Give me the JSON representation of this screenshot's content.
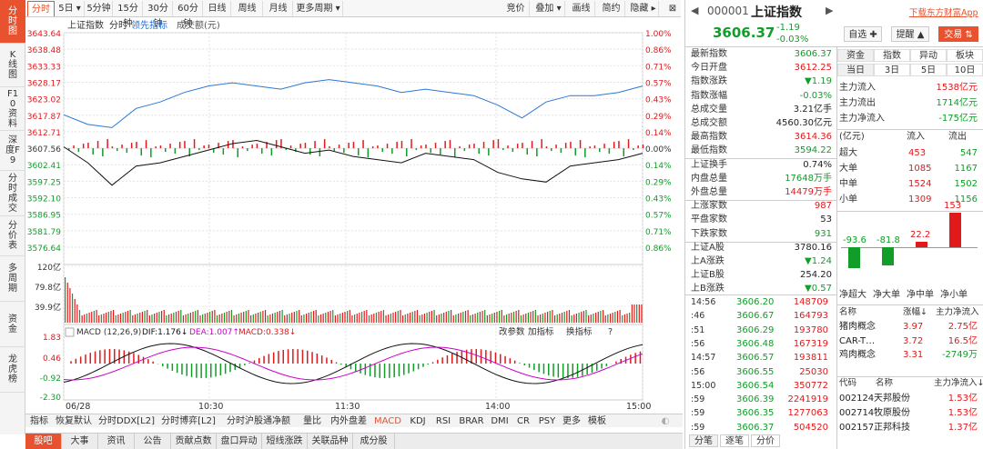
{
  "left_nav": [
    {
      "label": "分时图",
      "active": true
    },
    {
      "label": "K线图"
    },
    {
      "label": "F10资料"
    },
    {
      "label": "深度F9"
    },
    {
      "label": "分时成交"
    },
    {
      "label": "分价表"
    },
    {
      "label": "多周期"
    },
    {
      "label": "资金"
    },
    {
      "label": "龙虎榜"
    }
  ],
  "period_tabs": [
    "分时",
    "5日 ▾",
    "5分钟",
    "15分钟",
    "30分钟",
    "60分钟",
    "日线",
    "周线",
    "月线",
    "更多周期 ▾"
  ],
  "tools": [
    "竞价",
    "叠加 ▾",
    "画线",
    "简约",
    "隐藏 ▸"
  ],
  "chart_legend": {
    "name": "上证指数",
    "mode": "分时",
    "lead": "领先指标",
    "vol": "成交额(元)"
  },
  "chart_data": {
    "type": "line",
    "x_ticks": [
      "06/28",
      "10:30",
      "11:30",
      "14:00",
      "15:00"
    ],
    "price_ticks": [
      "3643.64",
      "3638.48",
      "3633.33",
      "3628.17",
      "3623.02",
      "3617.87",
      "3612.71",
      "3607.56",
      "3602.41",
      "3597.25",
      "3592.10",
      "3586.95",
      "3581.79",
      "3576.64"
    ],
    "pct_ticks": [
      "1.00%",
      "0.86%",
      "0.71%",
      "0.57%",
      "0.43%",
      "0.29%",
      "0.14%",
      "0.00%",
      "0.14%",
      "0.29%",
      "0.43%",
      "0.57%",
      "0.71%",
      "0.86%"
    ],
    "vol_ticks": [
      "120亿",
      "79.8亿",
      "39.9亿"
    ],
    "macd_ticks": [
      "1.83",
      "0.46",
      "-0.92",
      "-2.30"
    ],
    "ylim": [
      3576.64,
      3643.64
    ],
    "price_series": {
      "name": "上证指数",
      "x": [
        0,
        10,
        20,
        30,
        40,
        50,
        60,
        70,
        80,
        90,
        100,
        110,
        120,
        130,
        140,
        150,
        160,
        170,
        180,
        190,
        200,
        210,
        220,
        230,
        240
      ],
      "values": [
        3608,
        3603,
        3596,
        3602,
        3603,
        3605,
        3607,
        3609,
        3610,
        3608,
        3606,
        3607,
        3605,
        3604,
        3603,
        3606,
        3605,
        3604,
        3600,
        3598,
        3597,
        3602,
        3603,
        3604,
        3606
      ]
    },
    "lead_series": {
      "name": "领先指标",
      "x": [
        0,
        10,
        20,
        30,
        40,
        50,
        60,
        70,
        80,
        90,
        100,
        110,
        120,
        130,
        140,
        150,
        160,
        170,
        180,
        190,
        200,
        210,
        220,
        230,
        240
      ],
      "values": [
        3618,
        3615,
        3614,
        3620,
        3622,
        3625,
        3627,
        3628,
        3627,
        3626,
        3628,
        3629,
        3628,
        3627,
        3625,
        3626,
        3625,
        3624,
        3621,
        3617,
        3622,
        3624,
        3624,
        3625,
        3627
      ]
    },
    "macd": {
      "params": "MACD (12,26,9)",
      "dif": "DIF:1.176↓",
      "dea": "DEA:1.007↑",
      "macd": "MACD:0.338↓"
    }
  },
  "macd_tools": [
    "改参数",
    "加指标",
    "换指标",
    "?"
  ],
  "bottom_tabs": [
    "指标",
    "恢复默认",
    "分时DDX[L2]",
    "分时博弈[L2]",
    "分时沪股通净额",
    "量比",
    "内外盘差",
    "MACD",
    "KDJ",
    "RSI",
    "BRAR",
    "DMI",
    "CR",
    "PSY",
    "更多",
    "模板"
  ],
  "footer_tabs": [
    "股吧",
    "大事",
    "资讯",
    "公告",
    "贡献点数",
    "盘口异动",
    "短线涨跌",
    "关联品种",
    "成分股"
  ],
  "quote": {
    "code": "000001",
    "name": "上证指数",
    "price": "3606.37",
    "chg": "-1.19",
    "pct": "-0.03%",
    "download": "下载东方财富App",
    "btn_watch": "自选 ✚",
    "btn_alert": "提醒 ▲",
    "btn_trade": "交易 ⇅"
  },
  "fields": [
    {
      "label": "最新指数",
      "value": "3606.37",
      "color": "green"
    },
    {
      "label": "今日开盘",
      "value": "3612.25",
      "color": "red"
    },
    {
      "label": "指数涨跌",
      "value": "▼1.19",
      "color": "green"
    },
    {
      "label": "指数涨幅",
      "value": "-0.03%",
      "color": "green"
    },
    {
      "label": "总成交量",
      "value": "3.21亿手",
      "color": "black"
    },
    {
      "label": "总成交额",
      "value": "4560.30亿元",
      "color": "black"
    },
    {
      "label": "最高指数",
      "value": "3614.36",
      "color": "red"
    },
    {
      "label": "最低指数",
      "value": "3594.22",
      "color": "green"
    },
    {
      "label": "上证换手",
      "value": "0.74%",
      "color": "black"
    },
    {
      "label": "内盘总量",
      "value": "17648万手",
      "color": "green"
    },
    {
      "label": "外盘总量",
      "value": "14479万手",
      "color": "red"
    },
    {
      "label": "上涨家数",
      "value": "987",
      "color": "red"
    },
    {
      "label": "平盘家数",
      "value": "53",
      "color": "black"
    },
    {
      "label": "下跌家数",
      "value": "931",
      "color": "green"
    },
    {
      "label": "上证A股",
      "value": "3780.16",
      "color": "black"
    },
    {
      "label": "上A涨跌",
      "value": "▼1.24",
      "color": "green"
    },
    {
      "label": "上证B股",
      "value": "254.20",
      "color": "black"
    },
    {
      "label": "上B涨跌",
      "value": "▼0.57",
      "color": "green"
    }
  ],
  "ticks": [
    {
      "t": "14:56",
      "p": "3606.20",
      "v": "148709"
    },
    {
      "t": ":46",
      "p": "3606.67",
      "v": "164793"
    },
    {
      "t": ":51",
      "p": "3606.29",
      "v": "193780"
    },
    {
      "t": ":56",
      "p": "3606.48",
      "v": "167319"
    },
    {
      "t": "14:57",
      "p": "3606.57",
      "v": "193811"
    },
    {
      "t": ":56",
      "p": "3606.55",
      "v": "25030"
    },
    {
      "t": "15:00",
      "p": "3606.54",
      "v": "350772"
    },
    {
      "t": ":59",
      "p": "3606.39",
      "v": "2241919"
    },
    {
      "t": ":59",
      "p": "3606.35",
      "v": "1277063"
    },
    {
      "t": ":59",
      "p": "3606.37",
      "v": "504520"
    }
  ],
  "bottom_right_tabs": [
    "分笔",
    "逐笔",
    "分价"
  ],
  "fund_tabs": [
    "资金",
    "指数",
    "异动",
    "板块"
  ],
  "day_tabs": [
    "当日",
    "3日",
    "5日",
    "10日"
  ],
  "fund_flow": [
    {
      "label": "主力流入",
      "value": "1538亿元",
      "color": "red"
    },
    {
      "label": "主力流出",
      "value": "1714亿元",
      "color": "green"
    },
    {
      "label": "主力净流入",
      "value": "-175亿元",
      "color": "green"
    }
  ],
  "flow_header": [
    "(亿元)",
    "流入",
    "流出"
  ],
  "flow_rows": [
    {
      "label": "超大",
      "in": "453",
      "out": "547"
    },
    {
      "label": "大单",
      "in": "1085",
      "out": "1167"
    },
    {
      "label": "中单",
      "in": "1524",
      "out": "1502"
    },
    {
      "label": "小单",
      "in": "1309",
      "out": "1156"
    }
  ],
  "net_bars": [
    {
      "label": "净超大",
      "value": "-93.6",
      "num": -93.6
    },
    {
      "label": "净大单",
      "value": "-81.8",
      "num": -81.8
    },
    {
      "label": "净中单",
      "value": "22.2",
      "num": 22.2
    },
    {
      "label": "净小单",
      "value": "153",
      "num": 153
    }
  ],
  "concept_header": [
    "名称",
    "涨幅↓",
    "主力净流入"
  ],
  "concepts": [
    {
      "name": "猪肉概念",
      "pct": "3.97",
      "flow": "2.75亿"
    },
    {
      "name": "CAR-T…",
      "pct": "3.72",
      "flow": "16.5亿"
    },
    {
      "name": "鸡肉概念",
      "pct": "3.31",
      "flow": "-2749万"
    }
  ],
  "stock_header": [
    "代码",
    "名称",
    "主力净流入↓"
  ],
  "stocks": [
    {
      "code": "002124",
      "name": "天邦股份",
      "flow": "1.53亿"
    },
    {
      "code": "002714",
      "name": "牧原股份",
      "flow": "1.53亿"
    },
    {
      "code": "002157",
      "name": "正邦科技",
      "flow": "1.37亿"
    }
  ]
}
